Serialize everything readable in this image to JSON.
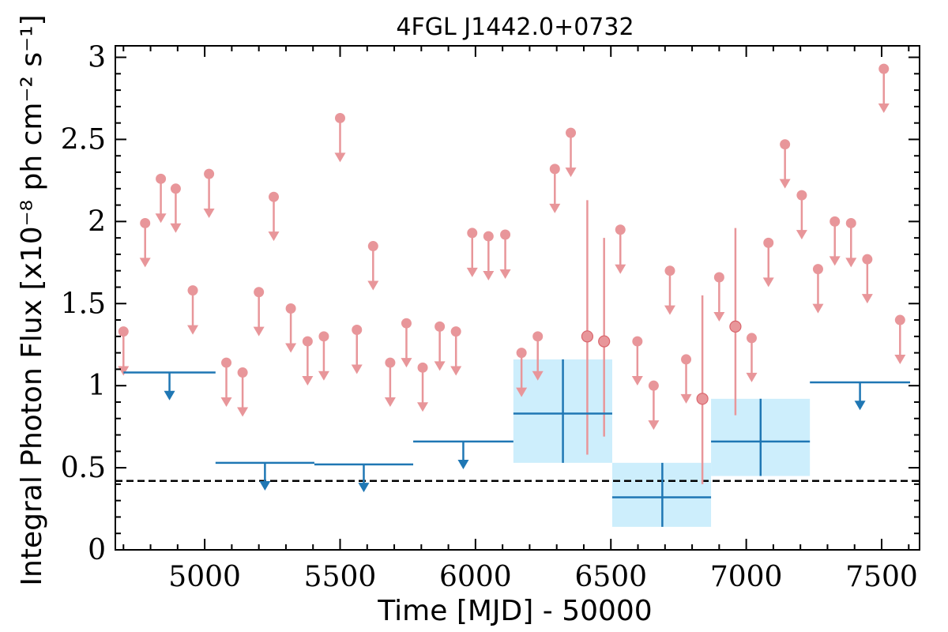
{
  "chart_data": {
    "type": "scatter",
    "title": "4FGL J1442.0+0732",
    "xlabel": "Time [MJD] - 50000",
    "ylabel": "Integral Photon Flux [x10⁻⁸ ph cm⁻² s⁻¹]",
    "xlim": [
      4670,
      7640
    ],
    "ylim": [
      0,
      3.07
    ],
    "x_ticks": [
      5000,
      5500,
      6000,
      6500,
      7000,
      7500
    ],
    "x_tick_labels": [
      "5000",
      "5500",
      "6000",
      "6500",
      "7000",
      "7500"
    ],
    "y_ticks": [
      0,
      0.5,
      1,
      1.5,
      2,
      2.5,
      3
    ],
    "y_tick_labels": [
      "0",
      "0.5",
      "1",
      "1.5",
      "2",
      "2.5",
      "3"
    ],
    "reference_level": 0.42,
    "colors": {
      "short_bins": "#e8969a",
      "long_bins": "#1f77b4",
      "long_bins_band": "#cdeefc",
      "reference_line": "#000000"
    },
    "short_bin_upper_limits": [
      {
        "x": 4700,
        "y": 1.33
      },
      {
        "x": 4780,
        "y": 1.99
      },
      {
        "x": 4838,
        "y": 2.26
      },
      {
        "x": 4893,
        "y": 2.2
      },
      {
        "x": 4956,
        "y": 1.58
      },
      {
        "x": 5016,
        "y": 2.29
      },
      {
        "x": 5080,
        "y": 1.14
      },
      {
        "x": 5140,
        "y": 1.08
      },
      {
        "x": 5200,
        "y": 1.57
      },
      {
        "x": 5255,
        "y": 2.15
      },
      {
        "x": 5318,
        "y": 1.47
      },
      {
        "x": 5380,
        "y": 1.27
      },
      {
        "x": 5440,
        "y": 1.3
      },
      {
        "x": 5500,
        "y": 2.63
      },
      {
        "x": 5562,
        "y": 1.34
      },
      {
        "x": 5622,
        "y": 1.85
      },
      {
        "x": 5685,
        "y": 1.14
      },
      {
        "x": 5745,
        "y": 1.38
      },
      {
        "x": 5805,
        "y": 1.11
      },
      {
        "x": 5868,
        "y": 1.36
      },
      {
        "x": 5928,
        "y": 1.33
      },
      {
        "x": 5988,
        "y": 1.93
      },
      {
        "x": 6048,
        "y": 1.91
      },
      {
        "x": 6110,
        "y": 1.92
      },
      {
        "x": 6170,
        "y": 1.2
      },
      {
        "x": 6230,
        "y": 1.3
      },
      {
        "x": 6293,
        "y": 2.32
      },
      {
        "x": 6352,
        "y": 2.54
      },
      {
        "x": 6535,
        "y": 1.95
      },
      {
        "x": 6598,
        "y": 1.27
      },
      {
        "x": 6658,
        "y": 1.0
      },
      {
        "x": 6718,
        "y": 1.7
      },
      {
        "x": 6778,
        "y": 1.16
      },
      {
        "x": 6900,
        "y": 1.66
      },
      {
        "x": 7020,
        "y": 1.29
      },
      {
        "x": 7082,
        "y": 1.87
      },
      {
        "x": 7143,
        "y": 2.47
      },
      {
        "x": 7205,
        "y": 2.16
      },
      {
        "x": 7265,
        "y": 1.71
      },
      {
        "x": 7327,
        "y": 2.0
      },
      {
        "x": 7387,
        "y": 1.99
      },
      {
        "x": 7447,
        "y": 1.77
      },
      {
        "x": 7508,
        "y": 2.93
      },
      {
        "x": 7568,
        "y": 1.4
      }
    ],
    "short_bin_detections": [
      {
        "x": 6413,
        "y": 1.3,
        "ylow": 0.58,
        "yhigh": 2.13
      },
      {
        "x": 6475,
        "y": 1.27,
        "ylow": 0.69,
        "yhigh": 1.9
      },
      {
        "x": 6838,
        "y": 0.92,
        "ylow": 0.4,
        "yhigh": 1.55
      },
      {
        "x": 6960,
        "y": 1.36,
        "ylow": 0.82,
        "yhigh": 1.96
      }
    ],
    "long_bin_upper_limits": [
      {
        "xmin": 4700,
        "xmax": 5040,
        "y": 1.08
      },
      {
        "xmin": 5040,
        "xmax": 5405,
        "y": 0.53
      },
      {
        "xmin": 5405,
        "xmax": 5770,
        "y": 0.52
      },
      {
        "xmin": 5770,
        "xmax": 6140,
        "y": 0.66
      },
      {
        "xmin": 7235,
        "xmax": 7605,
        "y": 1.02
      }
    ],
    "long_bin_detections": [
      {
        "x": 6323,
        "xmin": 6140,
        "xmax": 6505,
        "y": 0.83,
        "ylow": 0.53,
        "yhigh": 1.16
      },
      {
        "x": 6690,
        "xmin": 6505,
        "xmax": 6870,
        "y": 0.32,
        "ylow": 0.14,
        "yhigh": 0.53
      },
      {
        "x": 7053,
        "xmin": 6870,
        "xmax": 7235,
        "y": 0.66,
        "ylow": 0.45,
        "yhigh": 0.92
      }
    ]
  }
}
